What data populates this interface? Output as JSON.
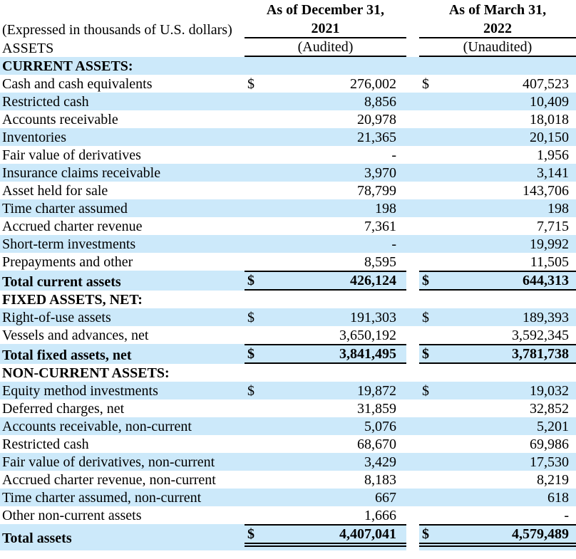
{
  "colors": {
    "stripe_blue": "#cce9fa",
    "rule_black": "#000000"
  },
  "header": {
    "expressed_note": "(Expressed in thousands of U.S. dollars)",
    "assets_label": "ASSETS",
    "columns": [
      {
        "period_line1": "As of December 31,",
        "period_line2": "2021",
        "audit_status": "(Audited)"
      },
      {
        "period_line1": "As of March 31,",
        "period_line2": "2022",
        "audit_status": "(Unaudited)"
      }
    ]
  },
  "rows": [
    {
      "type": "section",
      "shade": true,
      "label": "CURRENT ASSETS:"
    },
    {
      "type": "item",
      "shade": false,
      "label": "Cash and cash equivalents",
      "d1": "$",
      "v1": "276,002",
      "d2": "$",
      "v2": "407,523"
    },
    {
      "type": "item",
      "shade": true,
      "label": "Restricted cash",
      "v1": "8,856",
      "v2": "10,409"
    },
    {
      "type": "item",
      "shade": false,
      "label": "Accounts receivable",
      "v1": "20,978",
      "v2": "18,018"
    },
    {
      "type": "item",
      "shade": true,
      "label": "Inventories",
      "v1": "21,365",
      "v2": "20,150"
    },
    {
      "type": "item",
      "shade": false,
      "label": "Fair value of derivatives",
      "v1": "-",
      "v2": "1,956"
    },
    {
      "type": "item",
      "shade": true,
      "label": "Insurance claims receivable",
      "v1": "3,970",
      "v2": "3,141"
    },
    {
      "type": "item",
      "shade": false,
      "label": "Asset held for sale",
      "v1": "78,799",
      "v2": "143,706"
    },
    {
      "type": "item",
      "shade": true,
      "label": "Time charter assumed",
      "v1": "198",
      "v2": "198"
    },
    {
      "type": "item",
      "shade": false,
      "label": "Accrued charter revenue",
      "v1": "7,361",
      "v2": "7,715"
    },
    {
      "type": "item",
      "shade": true,
      "label": "Short-term investments",
      "v1": "-",
      "v2": "19,992"
    },
    {
      "type": "item",
      "shade": false,
      "label": "Prepayments and other",
      "v1": "8,595",
      "v2": "11,505"
    },
    {
      "type": "total",
      "shade": true,
      "label": "Total current assets",
      "d1": "$",
      "v1": "426,124",
      "d2": "$",
      "v2": "644,313"
    },
    {
      "type": "section",
      "shade": false,
      "label": "FIXED ASSETS, NET:"
    },
    {
      "type": "item",
      "shade": true,
      "label": "Right-of-use assets",
      "d1": "$",
      "v1": "191,303",
      "d2": "$",
      "v2": "189,393"
    },
    {
      "type": "item",
      "shade": false,
      "label": "Vessels and advances, net",
      "v1": "3,650,192",
      "v2": "3,592,345"
    },
    {
      "type": "total",
      "shade": true,
      "label": "Total fixed assets, net",
      "d1": "$",
      "v1": "3,841,495",
      "d2": "$",
      "v2": "3,781,738"
    },
    {
      "type": "section",
      "shade": false,
      "label": "NON-CURRENT ASSETS:"
    },
    {
      "type": "item",
      "shade": true,
      "label": "Equity method investments",
      "d1": "$",
      "v1": "19,872",
      "d2": "$",
      "v2": "19,032"
    },
    {
      "type": "item",
      "shade": false,
      "label": "Deferred charges, net",
      "v1": "31,859",
      "v2": "32,852"
    },
    {
      "type": "item",
      "shade": true,
      "label": "Accounts receivable, non-current",
      "v1": "5,076",
      "v2": "5,201"
    },
    {
      "type": "item",
      "shade": false,
      "label": "Restricted cash",
      "v1": "68,670",
      "v2": "69,986"
    },
    {
      "type": "item",
      "shade": true,
      "label": "Fair value of derivatives, non-current",
      "v1": "3,429",
      "v2": "17,530"
    },
    {
      "type": "item",
      "shade": false,
      "label": "Accrued charter revenue, non-current",
      "v1": "8,183",
      "v2": "8,219"
    },
    {
      "type": "item",
      "shade": true,
      "label": "Time charter assumed, non-current",
      "v1": "667",
      "v2": "618"
    },
    {
      "type": "item",
      "shade": false,
      "label": "Other non-current assets",
      "v1": "1,666",
      "v2": "-"
    },
    {
      "type": "grandtotal",
      "shade": true,
      "label": "Total assets",
      "d1": "$",
      "v1": "4,407,041",
      "d2": "$",
      "v2": "4,579,489"
    }
  ]
}
